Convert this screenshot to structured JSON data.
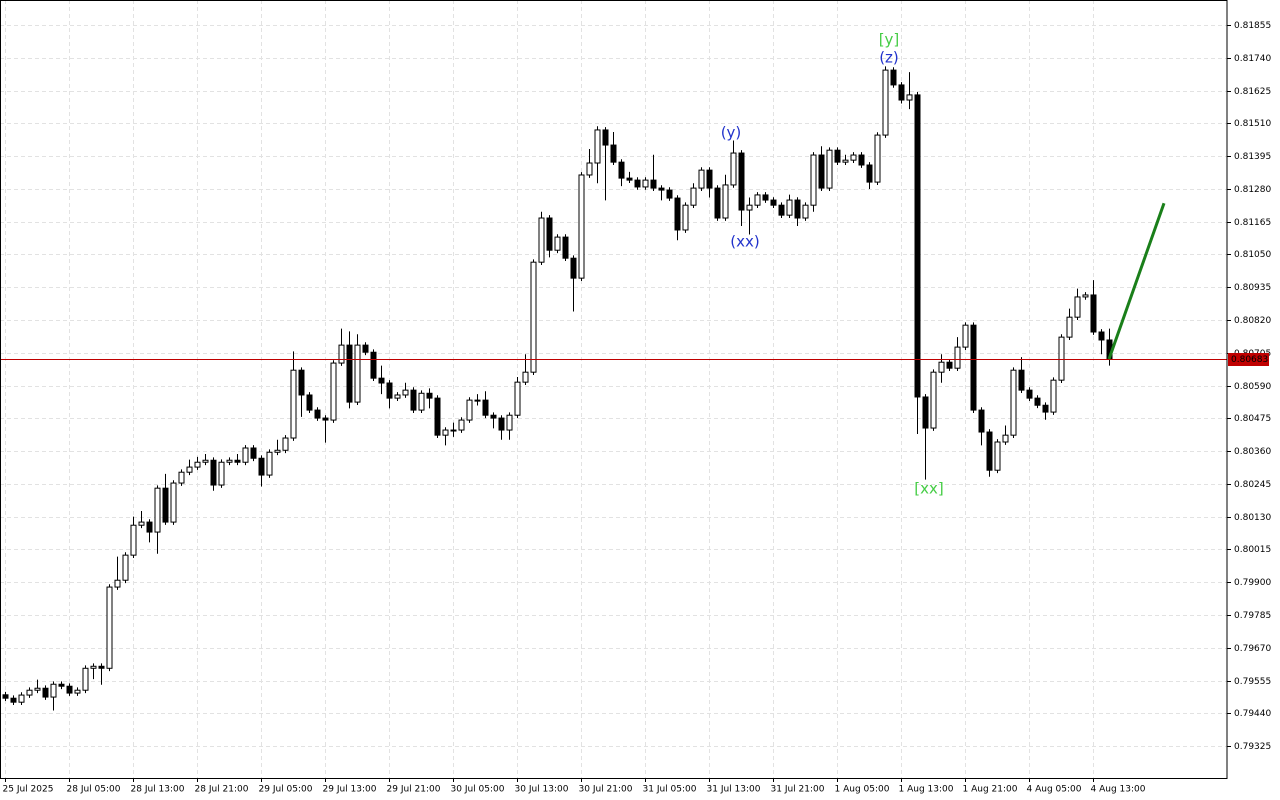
{
  "chart_data": {
    "type": "candlestick",
    "grid": true,
    "up_color": "#ffffff",
    "down_color": "#000000",
    "ylim": [
      0.79213,
      0.81943
    ],
    "yticks": [
      0.81855,
      {
        "value": 0.8174,
        "label": "0.81740"
      },
      0.81625,
      {
        "value": 0.8151,
        "label": "0.81510"
      },
      0.81395,
      {
        "value": 0.8128,
        "label": "0.81280"
      },
      0.81165,
      {
        "value": 0.8105,
        "label": "0.81050"
      },
      0.80935,
      {
        "value": 0.8082,
        "label": "0.80820"
      },
      0.80705,
      {
        "value": 0.8059,
        "label": "0.80590"
      },
      0.80475,
      {
        "value": 0.8036,
        "label": "0.80360"
      },
      0.80245,
      {
        "value": 0.8013,
        "label": "0.80130"
      },
      0.80015,
      {
        "value": 0.799,
        "label": "0.79900"
      },
      0.79785,
      {
        "value": 0.7967,
        "label": "0.79670"
      },
      0.79555,
      {
        "value": 0.7944,
        "label": "0.79440"
      },
      0.79325
    ],
    "categories": [
      "25 Jul 2025",
      null,
      null,
      null,
      null,
      null,
      null,
      null,
      "28 Jul 05:00",
      null,
      null,
      null,
      null,
      null,
      null,
      null,
      "28 Jul 13:00",
      null,
      null,
      null,
      null,
      null,
      null,
      null,
      "28 Jul 21:00",
      null,
      null,
      null,
      null,
      null,
      null,
      null,
      "29 Jul 05:00",
      null,
      null,
      null,
      null,
      null,
      null,
      null,
      "29 Jul 13:00",
      null,
      null,
      null,
      null,
      null,
      null,
      null,
      "29 Jul 21:00",
      null,
      null,
      null,
      null,
      null,
      null,
      null,
      "30 Jul 05:00",
      null,
      null,
      null,
      null,
      null,
      null,
      null,
      "30 Jul 13:00",
      null,
      null,
      null,
      null,
      null,
      null,
      null,
      "30 Jul 21:00",
      null,
      null,
      null,
      null,
      null,
      null,
      null,
      "31 Jul 05:00",
      null,
      null,
      null,
      null,
      null,
      null,
      null,
      "31 Jul 13:00",
      null,
      null,
      null,
      null,
      null,
      null,
      null,
      "31 Jul 21:00",
      null,
      null,
      null,
      null,
      null,
      null,
      null,
      "1 Aug 05:00",
      null,
      null,
      null,
      null,
      null,
      null,
      null,
      "1 Aug 13:00",
      null,
      null,
      null,
      null,
      null,
      null,
      null,
      "1 Aug 21:00",
      null,
      null,
      null,
      null,
      null,
      null,
      null,
      "4 Aug 05:00",
      null,
      null,
      null,
      null,
      null,
      null,
      null,
      "4 Aug 13:00",
      null,
      null
    ],
    "open": [
      0.79505,
      0.79493,
      0.79479,
      0.79504,
      0.79521,
      0.79528,
      0.79497,
      0.79542,
      0.79535,
      0.79511,
      0.79521,
      0.79598,
      0.79605,
      0.79598,
      0.79883,
      0.79907,
      0.79995,
      0.801,
      0.80111,
      0.80076,
      0.8023,
      0.80111,
      0.80248,
      0.80286,
      0.80304,
      0.80321,
      0.80328,
      0.80241,
      0.80321,
      0.80328,
      0.80321,
      0.80371,
      0.80335,
      0.80276,
      0.80356,
      0.80363,
      0.80406,
      0.80644,
      0.80557,
      0.80504,
      0.80476,
      0.80469,
      0.80669,
      0.80732,
      0.80532,
      0.80732,
      0.80707,
      0.80616,
      0.80599,
      0.80546,
      0.80557,
      0.80574,
      0.80504,
      0.80563,
      0.80546,
      0.80416,
      0.80434,
      0.80434,
      0.80469,
      0.80539,
      0.80539,
      0.80486,
      0.80476,
      0.80434,
      0.80486,
      0.80602,
      0.80637,
      0.81023,
      0.81178,
      0.81065,
      0.81111,
      0.81037,
      0.80967,
      0.81329,
      0.81371,
      0.81487,
      0.81434,
      0.81374,
      0.81318,
      0.81311,
      0.81287,
      0.81311,
      0.81283,
      0.81276,
      0.81248,
      0.81136,
      0.81223,
      0.81283,
      0.81346,
      0.81283,
      0.81178,
      0.81294,
      0.81406,
      0.81206,
      0.81223,
      0.81259,
      0.81241,
      0.81223,
      0.81188,
      0.81241,
      0.81178,
      0.81223,
      0.81399,
      0.81283,
      0.81416,
      0.81374,
      0.81381,
      0.81399,
      0.81364,
      0.81304,
      0.81469,
      0.81697,
      0.81645,
      0.81592,
      0.8161,
      0.8055,
      0.80441,
      0.80637,
      0.80672,
      0.80651,
      0.80725,
      0.80802,
      0.80504,
      0.80427,
      0.80293,
      0.80392,
      0.80416,
      0.80644,
      0.80574,
      0.80546,
      0.80521,
      0.80497,
      0.80609,
      0.8076,
      0.8083,
      0.80901,
      0.80908,
      0.80778,
      0.8075
    ],
    "high": [
      0.79515,
      0.79503,
      0.79514,
      0.79531,
      0.79558,
      0.79538,
      0.79552,
      0.79552,
      0.79545,
      0.79531,
      0.79608,
      0.79615,
      0.79615,
      0.79893,
      0.7999,
      0.80005,
      0.8013,
      0.8015,
      0.80121,
      0.8024,
      0.8028,
      0.80258,
      0.80296,
      0.8033,
      0.8034,
      0.8035,
      0.80338,
      0.80331,
      0.80338,
      0.8035,
      0.80381,
      0.80381,
      0.80345,
      0.80366,
      0.804,
      0.80416,
      0.8071,
      0.80654,
      0.80567,
      0.80514,
      0.80486,
      0.80679,
      0.8079,
      0.8078,
      0.8077,
      0.80742,
      0.80717,
      0.8066,
      0.80609,
      0.80567,
      0.806,
      0.80584,
      0.80573,
      0.8058,
      0.80556,
      0.80444,
      0.8046,
      0.80479,
      0.80549,
      0.8056,
      0.8057,
      0.80496,
      0.80486,
      0.80496,
      0.8062,
      0.807,
      0.81033,
      0.812,
      0.81188,
      0.81121,
      0.81121,
      0.81047,
      0.81339,
      0.8142,
      0.815,
      0.81497,
      0.8148,
      0.81384,
      0.8134,
      0.81321,
      0.81321,
      0.814,
      0.81293,
      0.81286,
      0.81258,
      0.81233,
      0.813,
      0.81356,
      0.81356,
      0.81293,
      0.8133,
      0.8145,
      0.81416,
      0.8125,
      0.81269,
      0.81269,
      0.81251,
      0.81233,
      0.8126,
      0.81251,
      0.81233,
      0.81409,
      0.8143,
      0.81426,
      0.81426,
      0.814,
      0.81409,
      0.81409,
      0.81374,
      0.81479,
      0.8171,
      0.81707,
      0.81655,
      0.8169,
      0.8162,
      0.8056,
      0.80647,
      0.807,
      0.80682,
      0.8076,
      0.80812,
      0.80812,
      0.80514,
      0.80437,
      0.80402,
      0.8045,
      0.80654,
      0.8069,
      0.80584,
      0.80556,
      0.80531,
      0.80619,
      0.8077,
      0.8086,
      0.8093,
      0.80918,
      0.8096,
      0.80788,
      0.8079
    ],
    "low": [
      0.79483,
      0.79469,
      0.79469,
      0.79494,
      0.79511,
      0.79487,
      0.7945,
      0.79525,
      0.79501,
      0.79501,
      0.79511,
      0.7956,
      0.7954,
      0.79588,
      0.79873,
      0.79897,
      0.79985,
      0.8009,
      0.8004,
      0.8,
      0.80101,
      0.80101,
      0.80238,
      0.80276,
      0.80294,
      0.80311,
      0.80221,
      0.80231,
      0.80311,
      0.80311,
      0.80311,
      0.80325,
      0.80236,
      0.80266,
      0.80346,
      0.80353,
      0.80396,
      0.8048,
      0.80494,
      0.80466,
      0.8039,
      0.80459,
      0.80659,
      0.8051,
      0.80522,
      0.80697,
      0.80606,
      0.8056,
      0.8051,
      0.80536,
      0.80547,
      0.80494,
      0.80494,
      0.8051,
      0.80406,
      0.8038,
      0.8041,
      0.80424,
      0.80459,
      0.8052,
      0.80476,
      0.8044,
      0.804,
      0.804,
      0.80476,
      0.80592,
      0.80627,
      0.81013,
      0.8104,
      0.81055,
      0.81027,
      0.8085,
      0.80957,
      0.81319,
      0.813,
      0.8124,
      0.81364,
      0.8129,
      0.81301,
      0.81277,
      0.81277,
      0.81273,
      0.8124,
      0.81238,
      0.811,
      0.81126,
      0.81213,
      0.81273,
      0.8125,
      0.81168,
      0.81168,
      0.81284,
      0.8115,
      0.8112,
      0.81213,
      0.81231,
      0.81213,
      0.81178,
      0.81178,
      0.8115,
      0.81168,
      0.812,
      0.81273,
      0.81273,
      0.81364,
      0.81364,
      0.81371,
      0.81354,
      0.8128,
      0.81294,
      0.81459,
      0.81635,
      0.8158,
      0.8156,
      0.8042,
      0.8026,
      0.80431,
      0.806,
      0.80641,
      0.80641,
      0.80715,
      0.80494,
      0.8038,
      0.8027,
      0.80283,
      0.80382,
      0.80406,
      0.80564,
      0.80536,
      0.80511,
      0.8047,
      0.80487,
      0.80599,
      0.8075,
      0.8082,
      0.80891,
      0.80768,
      0.807,
      0.8066
    ],
    "close": [
      0.79493,
      0.79479,
      0.79504,
      0.79521,
      0.79528,
      0.79497,
      0.79542,
      0.79535,
      0.79511,
      0.79521,
      0.79598,
      0.79605,
      0.79598,
      0.79883,
      0.79907,
      0.79995,
      0.801,
      0.80111,
      0.80076,
      0.8023,
      0.80111,
      0.80248,
      0.80286,
      0.80304,
      0.80321,
      0.80328,
      0.80241,
      0.80321,
      0.80328,
      0.80321,
      0.80371,
      0.80335,
      0.80276,
      0.80356,
      0.80363,
      0.80406,
      0.80644,
      0.80557,
      0.80504,
      0.80476,
      0.80469,
      0.80669,
      0.80732,
      0.80532,
      0.80732,
      0.80707,
      0.80616,
      0.80599,
      0.80546,
      0.80557,
      0.80574,
      0.80504,
      0.80563,
      0.80546,
      0.80416,
      0.80434,
      0.80434,
      0.80469,
      0.80539,
      0.80539,
      0.80486,
      0.80476,
      0.80434,
      0.80486,
      0.80602,
      0.80637,
      0.81023,
      0.81178,
      0.81065,
      0.81111,
      0.81037,
      0.80967,
      0.81329,
      0.81371,
      0.81487,
      0.81434,
      0.81374,
      0.81318,
      0.81311,
      0.81287,
      0.81311,
      0.81283,
      0.81276,
      0.81248,
      0.81136,
      0.81223,
      0.81283,
      0.81346,
      0.81283,
      0.81178,
      0.81294,
      0.81406,
      0.81206,
      0.81223,
      0.81259,
      0.81241,
      0.81223,
      0.81188,
      0.81241,
      0.81178,
      0.81223,
      0.81399,
      0.81283,
      0.81416,
      0.81374,
      0.81381,
      0.81399,
      0.81364,
      0.81304,
      0.81469,
      0.81697,
      0.81645,
      0.81592,
      0.8161,
      0.8055,
      0.80441,
      0.80637,
      0.80672,
      0.80651,
      0.80725,
      0.80802,
      0.80504,
      0.80427,
      0.80293,
      0.80392,
      0.80416,
      0.80644,
      0.80574,
      0.80546,
      0.80521,
      0.80497,
      0.80609,
      0.8076,
      0.8083,
      0.80901,
      0.80908,
      0.80778,
      0.8075,
      0.80683
    ],
    "current_price": 0.80683,
    "current_price_color": "#c00000",
    "projection": {
      "color": "#1a7f1a",
      "values": [
        0.80683,
        0.8123
      ]
    },
    "annotations": [
      {
        "text": "[y]",
        "color": "#44cc44"
      },
      {
        "text": "(z)",
        "color": "#2233cc"
      },
      {
        "text": "(y)",
        "color": "#2233cc"
      },
      {
        "text": "(xx)",
        "color": "#2233cc"
      },
      {
        "text": "[xx]",
        "color": "#44cc44"
      }
    ]
  }
}
